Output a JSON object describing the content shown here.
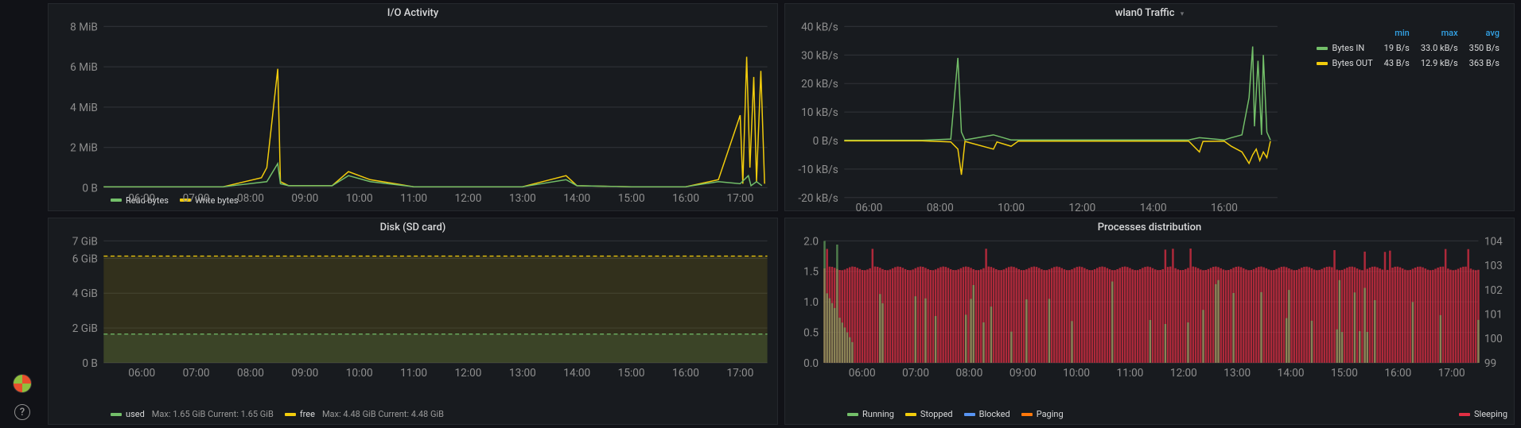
{
  "colors": {
    "bg": "#111217",
    "panel_bg": "#181b1f",
    "grid": "#2c2f34",
    "axis_text": "#8e8e8e",
    "series_green": "#73bf69",
    "series_yellow": "#f2cc0c",
    "series_cyan": "#5794f2",
    "series_orange": "#ff780a",
    "series_red": "#e02f44",
    "header_blue": "#33a2e5"
  },
  "panels": {
    "io": {
      "title": "I/O Activity",
      "type": "line",
      "ylim": [
        0,
        8
      ],
      "yunit": "MiB",
      "yticks": [
        0,
        2,
        4,
        6,
        8
      ],
      "ytick_labels": [
        "0 B",
        "2 MiB",
        "4 MiB",
        "6 MiB",
        "8 MiB"
      ],
      "xticks": [
        "06:00",
        "07:00",
        "08:00",
        "09:00",
        "10:00",
        "11:00",
        "12:00",
        "13:00",
        "14:00",
        "15:00",
        "16:00",
        "17:00"
      ],
      "xrange": [
        5.3,
        17.5
      ],
      "legend": [
        {
          "label": "Read bytes",
          "color": "#73bf69"
        },
        {
          "label": "Write bytes",
          "color": "#f2cc0c"
        }
      ],
      "series": {
        "read": [
          [
            5.3,
            0.05
          ],
          [
            6.5,
            0.05
          ],
          [
            7.5,
            0.05
          ],
          [
            8.3,
            0.3
          ],
          [
            8.5,
            1.2
          ],
          [
            8.55,
            0.2
          ],
          [
            8.7,
            0.1
          ],
          [
            9.5,
            0.1
          ],
          [
            9.8,
            0.6
          ],
          [
            10.2,
            0.3
          ],
          [
            11,
            0.05
          ],
          [
            12,
            0.05
          ],
          [
            13,
            0.05
          ],
          [
            13.8,
            0.4
          ],
          [
            14,
            0.1
          ],
          [
            15,
            0.05
          ],
          [
            16,
            0.05
          ],
          [
            16.6,
            0.3
          ],
          [
            17.0,
            0.2
          ],
          [
            17.15,
            0.6
          ],
          [
            17.2,
            0.1
          ],
          [
            17.3,
            0.3
          ],
          [
            17.4,
            0.1
          ]
        ],
        "write": [
          [
            5.3,
            0.05
          ],
          [
            6.5,
            0.05
          ],
          [
            7.5,
            0.05
          ],
          [
            8.2,
            0.5
          ],
          [
            8.3,
            1.0
          ],
          [
            8.5,
            5.9
          ],
          [
            8.55,
            0.3
          ],
          [
            8.7,
            0.1
          ],
          [
            9.5,
            0.1
          ],
          [
            9.8,
            0.8
          ],
          [
            10.2,
            0.4
          ],
          [
            11,
            0.05
          ],
          [
            12,
            0.05
          ],
          [
            13,
            0.05
          ],
          [
            13.8,
            0.6
          ],
          [
            14,
            0.1
          ],
          [
            15,
            0.05
          ],
          [
            16,
            0.05
          ],
          [
            16.6,
            0.4
          ],
          [
            17.0,
            3.6
          ],
          [
            17.05,
            0.2
          ],
          [
            17.12,
            6.5
          ],
          [
            17.18,
            1.0
          ],
          [
            17.25,
            5.5
          ],
          [
            17.3,
            0.3
          ],
          [
            17.38,
            5.8
          ],
          [
            17.45,
            0.2
          ]
        ]
      }
    },
    "wlan": {
      "title": "wlan0 Traffic",
      "dropdown": true,
      "type": "line",
      "ylim": [
        -20,
        40
      ],
      "yticks": [
        -20,
        -10,
        0,
        10,
        20,
        30,
        40
      ],
      "ytick_labels": [
        "-20 kB/s",
        "-10 kB/s",
        "0 B/s",
        "10 kB/s",
        "20 kB/s",
        "30 kB/s",
        "40 kB/s"
      ],
      "xticks": [
        "06:00",
        "08:00",
        "10:00",
        "12:00",
        "14:00",
        "16:00"
      ],
      "xrange": [
        5.3,
        17.5
      ],
      "stats_headers": [
        "min",
        "max",
        "avg"
      ],
      "stats": [
        {
          "label": "Bytes IN",
          "color": "#73bf69",
          "min": "19 B/s",
          "max": "33.0 kB/s",
          "avg": "350 B/s"
        },
        {
          "label": "Bytes OUT",
          "color": "#f2cc0c",
          "min": "43 B/s",
          "max": "12.9 kB/s",
          "avg": "363 B/s"
        }
      ],
      "series": {
        "in": [
          [
            5.3,
            0.1
          ],
          [
            7.5,
            0.1
          ],
          [
            8.3,
            0.5
          ],
          [
            8.5,
            29
          ],
          [
            8.6,
            3
          ],
          [
            8.7,
            0.2
          ],
          [
            9.5,
            2
          ],
          [
            10,
            0.2
          ],
          [
            11,
            0.2
          ],
          [
            12,
            0.2
          ],
          [
            13,
            0.2
          ],
          [
            14,
            0.2
          ],
          [
            15,
            0.2
          ],
          [
            15.3,
            1
          ],
          [
            16,
            0.2
          ],
          [
            16.2,
            1
          ],
          [
            16.5,
            2
          ],
          [
            16.7,
            15
          ],
          [
            16.8,
            33
          ],
          [
            16.85,
            5
          ],
          [
            16.95,
            28
          ],
          [
            17.05,
            2
          ],
          [
            17.1,
            30
          ],
          [
            17.2,
            3
          ],
          [
            17.3,
            0.2
          ]
        ],
        "out": [
          [
            5.3,
            -0.1
          ],
          [
            7.5,
            -0.1
          ],
          [
            8.3,
            -0.5
          ],
          [
            8.5,
            -3
          ],
          [
            8.6,
            -12
          ],
          [
            8.7,
            -0.3
          ],
          [
            9.5,
            -3
          ],
          [
            9.6,
            -0.5
          ],
          [
            10,
            -2
          ],
          [
            10.2,
            -0.2
          ],
          [
            11,
            -0.2
          ],
          [
            12,
            -0.2
          ],
          [
            13,
            -0.2
          ],
          [
            14,
            -0.2
          ],
          [
            15,
            -0.2
          ],
          [
            15.3,
            -4
          ],
          [
            15.4,
            -0.3
          ],
          [
            16,
            -0.2
          ],
          [
            16.2,
            -2
          ],
          [
            16.5,
            -4
          ],
          [
            16.7,
            -8
          ],
          [
            16.8,
            -5
          ],
          [
            16.9,
            -3
          ],
          [
            17.0,
            -7
          ],
          [
            17.1,
            -4
          ],
          [
            17.2,
            -6
          ],
          [
            17.3,
            -0.2
          ]
        ]
      }
    },
    "disk": {
      "title": "Disk (SD card)",
      "type": "line",
      "ylim": [
        0,
        7
      ],
      "yticks": [
        0,
        2,
        4,
        6,
        7
      ],
      "ytick_labels": [
        "0 B",
        "2 GiB",
        "4 GiB",
        "6 GiB",
        "7 GiB"
      ],
      "xticks": [
        "06:00",
        "07:00",
        "08:00",
        "09:00",
        "10:00",
        "11:00",
        "12:00",
        "13:00",
        "14:00",
        "15:00",
        "16:00",
        "17:00"
      ],
      "xrange": [
        5.3,
        17.5
      ],
      "legend": [
        {
          "label": "used",
          "color": "#73bf69",
          "extra": "Max: 1.65 GiB  Current: 1.65 GiB"
        },
        {
          "label": "free",
          "color": "#f2cc0c",
          "extra": "Max: 4.48 GiB  Current: 4.48 GiB"
        }
      ],
      "series": {
        "used": 1.65,
        "free": 6.13
      }
    },
    "proc": {
      "title": "Processes distribution",
      "type": "dual",
      "ylim_left": [
        0,
        2.0
      ],
      "yticks_left": [
        0,
        0.5,
        1.0,
        1.5,
        2.0
      ],
      "ylim_right": [
        99,
        104
      ],
      "yticks_right": [
        99,
        100,
        101,
        102,
        103,
        104
      ],
      "xticks": [
        "06:00",
        "07:00",
        "08:00",
        "09:00",
        "10:00",
        "11:00",
        "12:00",
        "13:00",
        "14:00",
        "15:00",
        "16:00",
        "17:00"
      ],
      "xrange": [
        5.3,
        17.5
      ],
      "legend_left": [
        {
          "label": "Running",
          "color": "#73bf69"
        },
        {
          "label": "Stopped",
          "color": "#f2cc0c"
        },
        {
          "label": "Blocked",
          "color": "#5794f2"
        },
        {
          "label": "Paging",
          "color": "#ff780a"
        }
      ],
      "legend_right": [
        {
          "label": "Sleeping",
          "color": "#e02f44"
        }
      ]
    }
  },
  "sidebar": {
    "help": "?"
  }
}
